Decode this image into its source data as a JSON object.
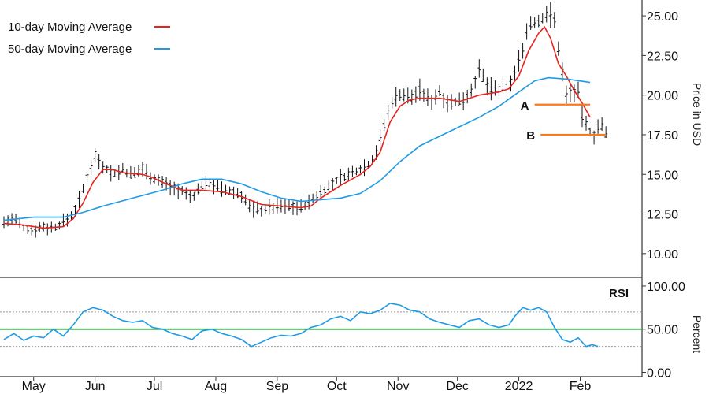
{
  "chart_data": [
    {
      "type": "line",
      "panel": "price",
      "ylabel": "Price in USD",
      "ylim": [
        8.5,
        26.0
      ],
      "yticks": [
        {
          "value": 25.0,
          "label": "25.00"
        },
        {
          "value": 22.5,
          "label": "22.50"
        },
        {
          "value": 20.0,
          "label": "20.00"
        },
        {
          "value": 17.5,
          "label": "17.50"
        },
        {
          "value": 15.0,
          "label": "15.00"
        },
        {
          "value": 12.5,
          "label": "12.50"
        },
        {
          "value": 10.0,
          "label": "10.00"
        }
      ],
      "xlim": [
        0,
        292
      ],
      "xticks": [
        {
          "value": 15,
          "label": "May"
        },
        {
          "value": 46,
          "label": "Jun"
        },
        {
          "value": 76,
          "label": "Jul"
        },
        {
          "value": 107,
          "label": "Aug"
        },
        {
          "value": 138,
          "label": "Sep"
        },
        {
          "value": 168,
          "label": "Oct"
        },
        {
          "value": 199,
          "label": "Nov"
        },
        {
          "value": 229,
          "label": "Dec"
        },
        {
          "value": 260,
          "label": "2022"
        },
        {
          "value": 291,
          "label": "Feb"
        }
      ],
      "legend": {
        "placement": "top-left",
        "entries": [
          {
            "label": "10-day Moving Average",
            "color": "#e8231e"
          },
          {
            "label": "50-day Moving Average",
            "color": "#1e9be6"
          }
        ]
      },
      "price_bar_color": "#111111",
      "price_path": [
        [
          0,
          12.0
        ],
        [
          5,
          12.2
        ],
        [
          10,
          11.6
        ],
        [
          15,
          11.5
        ],
        [
          20,
          11.7
        ],
        [
          25,
          11.6
        ],
        [
          30,
          12.0
        ],
        [
          35,
          12.5
        ],
        [
          40,
          14.0
        ],
        [
          43,
          15.3
        ],
        [
          46,
          16.2
        ],
        [
          50,
          15.6
        ],
        [
          55,
          15.0
        ],
        [
          60,
          15.3
        ],
        [
          65,
          14.9
        ],
        [
          70,
          15.4
        ],
        [
          75,
          14.8
        ],
        [
          80,
          14.5
        ],
        [
          85,
          14.2
        ],
        [
          90,
          13.9
        ],
        [
          95,
          13.5
        ],
        [
          100,
          14.3
        ],
        [
          105,
          14.4
        ],
        [
          110,
          14.0
        ],
        [
          115,
          13.9
        ],
        [
          120,
          13.7
        ],
        [
          125,
          12.8
        ],
        [
          130,
          12.8
        ],
        [
          135,
          12.9
        ],
        [
          140,
          13.0
        ],
        [
          145,
          13.0
        ],
        [
          150,
          12.9
        ],
        [
          155,
          13.3
        ],
        [
          160,
          13.9
        ],
        [
          165,
          14.3
        ],
        [
          170,
          14.8
        ],
        [
          175,
          15.0
        ],
        [
          180,
          15.4
        ],
        [
          185,
          15.7
        ],
        [
          188,
          16.5
        ],
        [
          190,
          17.2
        ],
        [
          193,
          18.5
        ],
        [
          196,
          19.6
        ],
        [
          200,
          20.1
        ],
        [
          205,
          19.8
        ],
        [
          210,
          20.3
        ],
        [
          215,
          19.6
        ],
        [
          220,
          20.2
        ],
        [
          225,
          19.5
        ],
        [
          230,
          19.6
        ],
        [
          235,
          20.1
        ],
        [
          240,
          21.5
        ],
        [
          245,
          20.4
        ],
        [
          250,
          20.3
        ],
        [
          255,
          20.6
        ],
        [
          258,
          21.3
        ],
        [
          262,
          23.0
        ],
        [
          265,
          24.5
        ],
        [
          270,
          24.6
        ],
        [
          275,
          25.3
        ],
        [
          278,
          24.6
        ],
        [
          281,
          22.2
        ],
        [
          284,
          20.0
        ],
        [
          287,
          20.3
        ],
        [
          290,
          20.1
        ],
        [
          292,
          18.7
        ],
        [
          295,
          17.8
        ],
        [
          298,
          17.5
        ],
        [
          301,
          18.3
        ],
        [
          304,
          17.5
        ]
      ],
      "series": [
        {
          "name": "10-day Moving Average",
          "color": "#e8231e",
          "points": [
            [
              0,
              11.9
            ],
            [
              10,
              11.8
            ],
            [
              20,
              11.6
            ],
            [
              30,
              11.7
            ],
            [
              35,
              12.2
            ],
            [
              40,
              13.2
            ],
            [
              45,
              14.5
            ],
            [
              50,
              15.3
            ],
            [
              55,
              15.3
            ],
            [
              60,
              15.1
            ],
            [
              70,
              15.0
            ],
            [
              75,
              14.8
            ],
            [
              80,
              14.5
            ],
            [
              90,
              14.0
            ],
            [
              100,
              14.0
            ],
            [
              110,
              13.9
            ],
            [
              120,
              13.6
            ],
            [
              130,
              13.1
            ],
            [
              140,
              13.0
            ],
            [
              150,
              12.9
            ],
            [
              155,
              13.0
            ],
            [
              160,
              13.5
            ],
            [
              170,
              14.3
            ],
            [
              180,
              15.0
            ],
            [
              185,
              15.5
            ],
            [
              190,
              16.4
            ],
            [
              195,
              18.3
            ],
            [
              200,
              19.3
            ],
            [
              205,
              19.7
            ],
            [
              210,
              19.8
            ],
            [
              220,
              19.8
            ],
            [
              230,
              19.6
            ],
            [
              240,
              20.0
            ],
            [
              250,
              20.2
            ],
            [
              255,
              20.4
            ],
            [
              260,
              21.2
            ],
            [
              265,
              22.8
            ],
            [
              270,
              23.9
            ],
            [
              273,
              24.3
            ],
            [
              276,
              23.6
            ],
            [
              280,
              22.0
            ],
            [
              284,
              21.2
            ],
            [
              288,
              20.3
            ],
            [
              292,
              19.5
            ],
            [
              296,
              18.6
            ]
          ]
        },
        {
          "name": "50-day Moving Average",
          "color": "#1e9be6",
          "points": [
            [
              0,
              12.1
            ],
            [
              15,
              12.3
            ],
            [
              30,
              12.3
            ],
            [
              40,
              12.6
            ],
            [
              50,
              13.0
            ],
            [
              65,
              13.5
            ],
            [
              80,
              14.0
            ],
            [
              90,
              14.4
            ],
            [
              100,
              14.7
            ],
            [
              110,
              14.7
            ],
            [
              120,
              14.4
            ],
            [
              130,
              13.9
            ],
            [
              140,
              13.5
            ],
            [
              150,
              13.3
            ],
            [
              160,
              13.4
            ],
            [
              170,
              13.5
            ],
            [
              180,
              13.8
            ],
            [
              190,
              14.6
            ],
            [
              200,
              15.8
            ],
            [
              210,
              16.8
            ],
            [
              220,
              17.4
            ],
            [
              230,
              18.0
            ],
            [
              240,
              18.6
            ],
            [
              250,
              19.3
            ],
            [
              260,
              20.2
            ],
            [
              268,
              20.9
            ],
            [
              275,
              21.1
            ],
            [
              285,
              21.0
            ],
            [
              296,
              20.8
            ]
          ]
        }
      ],
      "annotations": [
        {
          "label": "A",
          "level": 19.4,
          "x_start": 268,
          "x_end": 296,
          "color": "#f47b20"
        },
        {
          "label": "B",
          "level": 17.5,
          "x_start": 271,
          "x_end": 304,
          "color": "#f47b20"
        }
      ]
    },
    {
      "type": "line",
      "panel": "RSI",
      "title": "RSI",
      "ylabel": "Percent",
      "ylim": [
        -5,
        110
      ],
      "yticks": [
        {
          "value": 100,
          "label": "100.00"
        },
        {
          "value": 50,
          "label": "50.00"
        },
        {
          "value": 0,
          "label": "0.00"
        }
      ],
      "reference_lines": [
        {
          "value": 70,
          "color": "#9a9a9a",
          "style": "dotted"
        },
        {
          "value": 30,
          "color": "#9a9a9a",
          "style": "dotted"
        },
        {
          "value": 50,
          "color": "#2e9a3f",
          "style": "solid"
        }
      ],
      "series": [
        {
          "name": "RSI",
          "color": "#1e9be6",
          "points": [
            [
              0,
              38
            ],
            [
              5,
              45
            ],
            [
              10,
              37
            ],
            [
              15,
              42
            ],
            [
              20,
              40
            ],
            [
              25,
              50
            ],
            [
              30,
              42
            ],
            [
              35,
              55
            ],
            [
              40,
              70
            ],
            [
              45,
              75
            ],
            [
              50,
              72
            ],
            [
              55,
              65
            ],
            [
              60,
              60
            ],
            [
              65,
              58
            ],
            [
              70,
              60
            ],
            [
              75,
              52
            ],
            [
              80,
              50
            ],
            [
              85,
              45
            ],
            [
              90,
              42
            ],
            [
              95,
              38
            ],
            [
              100,
              48
            ],
            [
              105,
              50
            ],
            [
              110,
              45
            ],
            [
              115,
              42
            ],
            [
              120,
              38
            ],
            [
              125,
              30
            ],
            [
              130,
              35
            ],
            [
              135,
              40
            ],
            [
              140,
              43
            ],
            [
              145,
              42
            ],
            [
              150,
              45
            ],
            [
              155,
              52
            ],
            [
              160,
              55
            ],
            [
              165,
              62
            ],
            [
              170,
              65
            ],
            [
              175,
              60
            ],
            [
              180,
              70
            ],
            [
              185,
              68
            ],
            [
              190,
              72
            ],
            [
              195,
              80
            ],
            [
              200,
              78
            ],
            [
              205,
              72
            ],
            [
              210,
              70
            ],
            [
              215,
              62
            ],
            [
              220,
              58
            ],
            [
              225,
              55
            ],
            [
              230,
              52
            ],
            [
              235,
              60
            ],
            [
              240,
              62
            ],
            [
              245,
              55
            ],
            [
              250,
              52
            ],
            [
              255,
              55
            ],
            [
              258,
              65
            ],
            [
              262,
              75
            ],
            [
              266,
              72
            ],
            [
              270,
              75
            ],
            [
              274,
              70
            ],
            [
              278,
              52
            ],
            [
              282,
              38
            ],
            [
              286,
              35
            ],
            [
              290,
              40
            ],
            [
              294,
              30
            ],
            [
              297,
              32
            ],
            [
              300,
              30
            ]
          ]
        }
      ]
    }
  ]
}
